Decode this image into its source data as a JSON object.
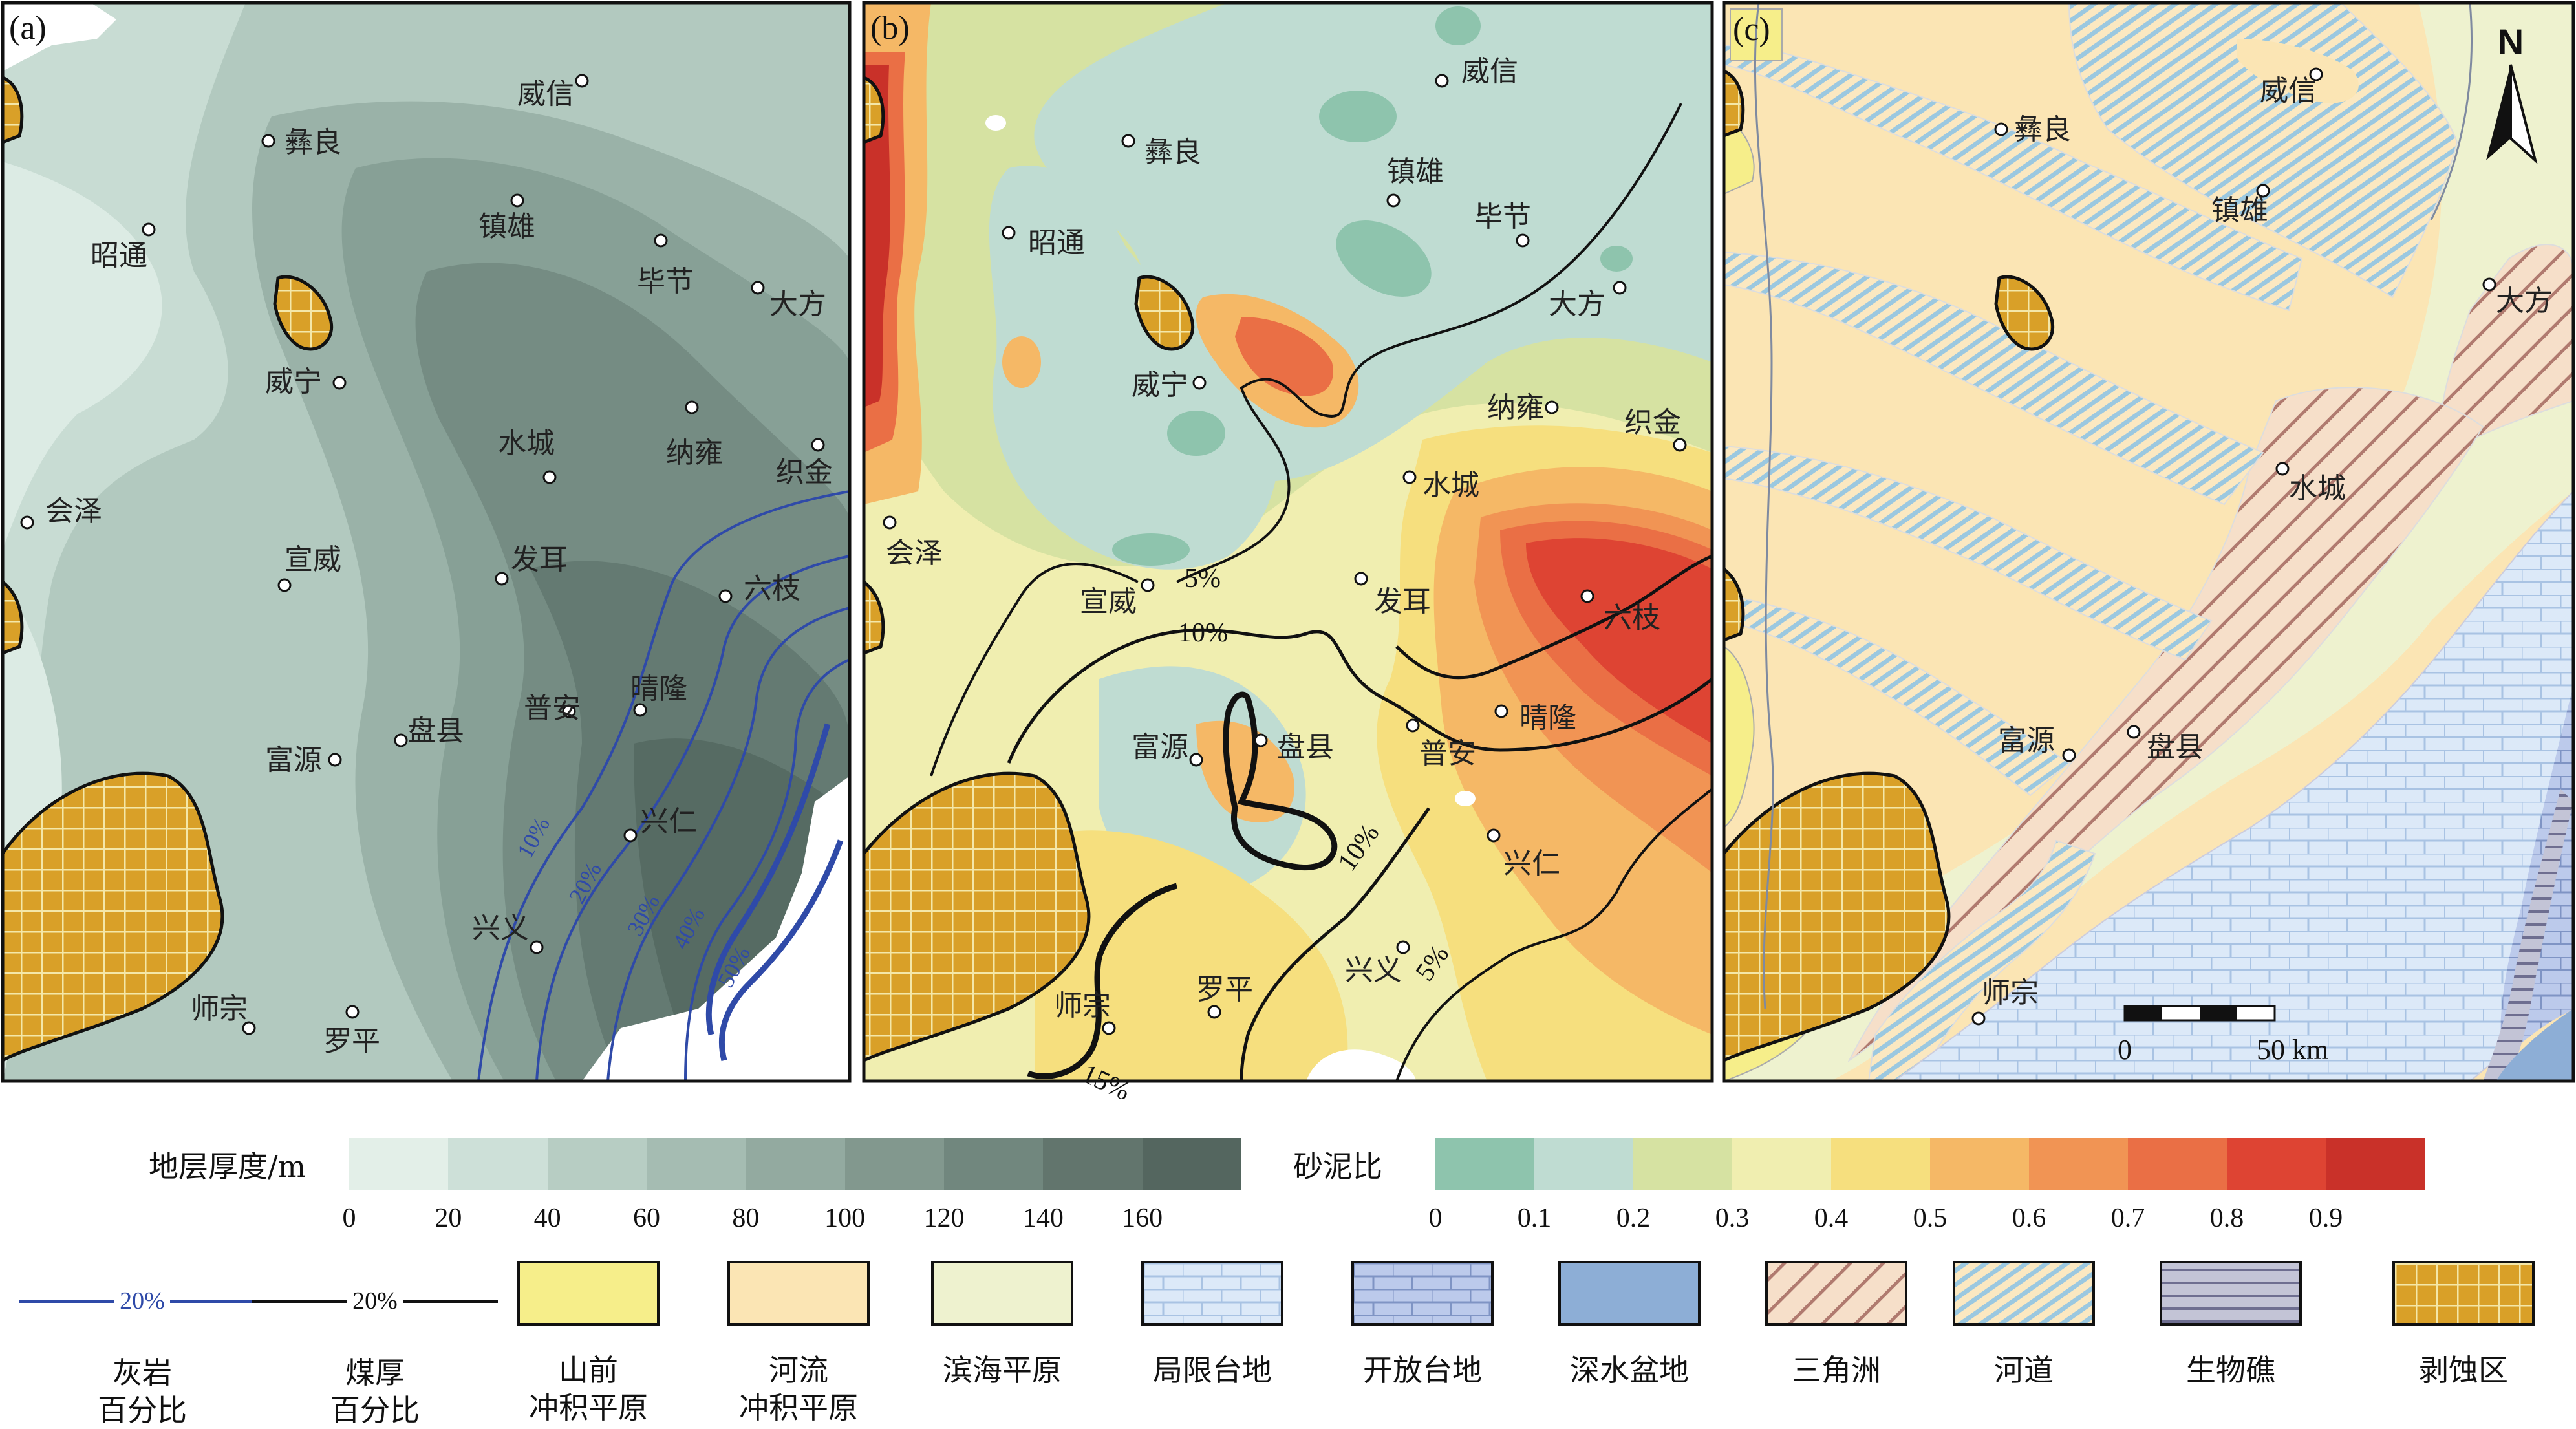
{
  "panels": [
    {
      "label": "(a)"
    },
    {
      "label": "(b)"
    },
    {
      "label": "(c)"
    }
  ],
  "cities": {
    "weixin": "威信",
    "yiliang": "彝良",
    "zhenxiong": "镇雄",
    "zhaotong": "昭通",
    "bijie": "毕节",
    "dafang": "大方",
    "weining": "威宁",
    "shuicheng": "水城",
    "nayong": "纳雍",
    "zhijin": "织金",
    "huize": "会泽",
    "xuanwei": "宣威",
    "faer": "发耳",
    "liuzhi": "六枝",
    "puan": "普安",
    "qinglong": "晴隆",
    "fuyuan": "富源",
    "panxian": "盘县",
    "xingren": "兴仁",
    "xingyi": "兴义",
    "shizong": "师宗",
    "luoping": "罗平"
  },
  "contours_b": [
    "5%",
    "10%",
    "10%",
    "5%",
    "15%"
  ],
  "contours_a": [
    "10%",
    "20%",
    "30%",
    "40%",
    "50%"
  ],
  "north": "N",
  "scale_bar": {
    "start": "0",
    "end": "50 km"
  },
  "thickness_legend": {
    "title": "地层厚度/m",
    "ticks": [
      "0",
      "20",
      "40",
      "60",
      "80",
      "100",
      "120",
      "140",
      "160"
    ],
    "colors": [
      "#e3efe8",
      "#cde0d8",
      "#b7cdc3",
      "#a5bcb2",
      "#93aaa0",
      "#82988e",
      "#71877e",
      "#62756d",
      "#54665f"
    ]
  },
  "sandmud_legend": {
    "title": "砂泥比",
    "ticks": [
      "0",
      "0.1",
      "0.2",
      "0.3",
      "0.4",
      "0.5",
      "0.6",
      "0.7",
      "0.8",
      "0.9"
    ],
    "colors": [
      "#8ec4ad",
      "#bfdcd2",
      "#d6e2a2",
      "#f0eeb0",
      "#f6df7e",
      "#f5b866",
      "#f19454",
      "#ea6f45",
      "#de4433",
      "#c93129"
    ]
  },
  "facies_legend": [
    {
      "text": "灰岩\n百分比",
      "pct": "20%",
      "color": "#2f4aa8"
    },
    {
      "text": "煤厚\n百分比",
      "pct": "20%",
      "color": "#111111"
    },
    {
      "text": "山前\n冲积平原",
      "color": "#f6ee8a"
    },
    {
      "text": "河流\n冲积平原",
      "color": "#fbe5b4"
    },
    {
      "text": "滨海平原",
      "color": "#eef2cf"
    },
    {
      "text": "局限台地",
      "color": "#dbe9f7"
    },
    {
      "text": "开放台地",
      "color": "#b8c8ec"
    },
    {
      "text": "深水盆地",
      "color": "#8daed6"
    },
    {
      "text": "三角洲",
      "color": "#f7e1c9"
    },
    {
      "text": "河道",
      "color": "#d3ecf1"
    },
    {
      "text": "生物礁",
      "color": "#c3c4d6"
    },
    {
      "text": "剥蚀区",
      "color": "#d9a028"
    }
  ]
}
